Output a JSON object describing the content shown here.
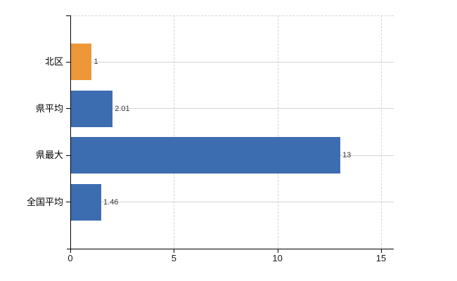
{
  "chart_data": {
    "type": "bar",
    "orientation": "horizontal",
    "title": "",
    "xlabel": "",
    "ylabel": "",
    "categories": [
      "北区",
      "県平均",
      "県最大",
      "全国平均"
    ],
    "values": [
      1,
      2.01,
      13,
      1.46
    ],
    "value_labels": [
      "1",
      "2.01",
      "13",
      "1.46"
    ],
    "bar_colors": [
      "#EE9739",
      "#3D6DB1",
      "#3D6DB1",
      "#3D6DB1"
    ],
    "xlim": [
      0,
      15
    ],
    "x_ticks": [
      0,
      5,
      10,
      15
    ],
    "x_tick_labels": [
      "0",
      "5",
      "10",
      "15"
    ],
    "grid": "on",
    "gridline_style": {
      "vertical": "dashed",
      "horizontal": "solid",
      "color": "#D5D5D5"
    },
    "legend": "none",
    "colors": {
      "highlight_orange": "#EE9739",
      "series_blue": "#3D6DB1",
      "axis": "#000000",
      "value_label_text": "#3C3C3C",
      "background": "#FFFFFF"
    }
  }
}
